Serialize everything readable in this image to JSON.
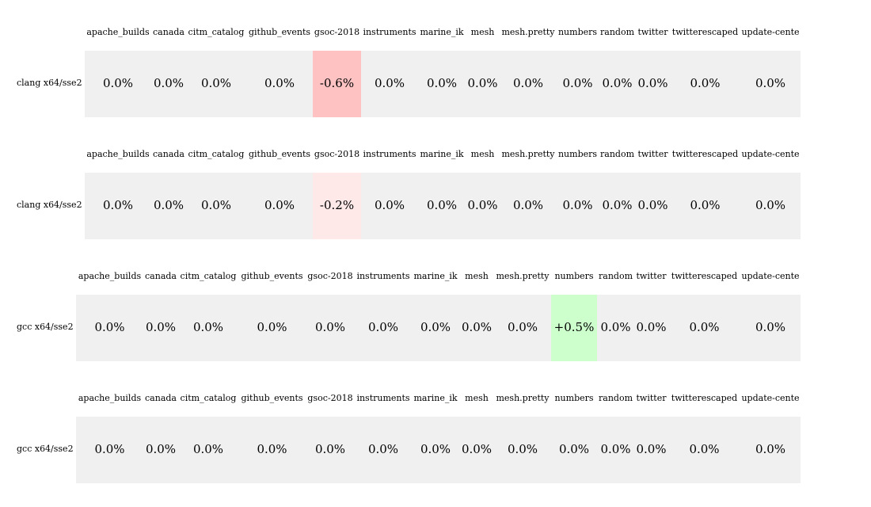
{
  "chart_data": {
    "type": "table",
    "columns": [
      "apache_builds",
      "canada",
      "citm_catalog",
      "github_events",
      "gsoc-2018",
      "instruments",
      "marine_ik",
      "mesh",
      "mesh.pretty",
      "numbers",
      "random",
      "twitter",
      "twitterescaped",
      "update-cente"
    ],
    "rows": [
      {
        "label": "clang x64/sse2",
        "cells": [
          "0.0%",
          "0.0%",
          "0.0%",
          "0.0%",
          "-0.6%",
          "0.0%",
          "0.0%",
          "0.0%",
          "0.0%",
          "0.0%",
          "0.0%",
          "0.0%",
          "0.0%",
          "0.0%"
        ],
        "values": [
          0,
          0,
          0,
          0,
          -0.6,
          0,
          0,
          0,
          0,
          0,
          0,
          0,
          0,
          0
        ]
      },
      {
        "label": "clang x64/sse2",
        "cells": [
          "0.0%",
          "0.0%",
          "0.0%",
          "0.0%",
          "-0.2%",
          "0.0%",
          "0.0%",
          "0.0%",
          "0.0%",
          "0.0%",
          "0.0%",
          "0.0%",
          "0.0%",
          "0.0%"
        ],
        "values": [
          0,
          0,
          0,
          0,
          -0.2,
          0,
          0,
          0,
          0,
          0,
          0,
          0,
          0,
          0
        ]
      },
      {
        "label": "gcc x64/sse2",
        "cells": [
          "0.0%",
          "0.0%",
          "0.0%",
          "0.0%",
          "0.0%",
          "0.0%",
          "0.0%",
          "0.0%",
          "0.0%",
          "+0.5%",
          "0.0%",
          "0.0%",
          "0.0%",
          "0.0%"
        ],
        "values": [
          0,
          0,
          0,
          0,
          0,
          0,
          0,
          0,
          0,
          0.5,
          0,
          0,
          0,
          0
        ]
      },
      {
        "label": "gcc x64/sse2",
        "cells": [
          "0.0%",
          "0.0%",
          "0.0%",
          "0.0%",
          "0.0%",
          "0.0%",
          "0.0%",
          "0.0%",
          "0.0%",
          "0.0%",
          "0.0%",
          "0.0%",
          "0.0%",
          "0.0%"
        ],
        "values": [
          0,
          0,
          0,
          0,
          0,
          0,
          0,
          0,
          0,
          0,
          0,
          0,
          0,
          0
        ]
      }
    ],
    "colors": {
      "negative": "#ffc2c2",
      "negative_light": "#ffe8e8",
      "positive": "#ccffcc",
      "neutral": "#f0f0f0"
    }
  }
}
